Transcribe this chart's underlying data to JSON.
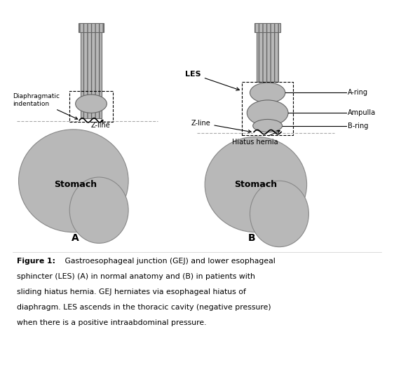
{
  "fig_width": 5.62,
  "fig_height": 5.27,
  "dpi": 100,
  "bg_color": "#ffffff",
  "border_color": "#cccccc",
  "gray": "#b8b8b8",
  "dark_gray": "#888888",
  "label_A": "A",
  "label_B": "B",
  "label_LES": "LES",
  "label_Zline": "Z-line",
  "label_diaphragmatic": "Diaphragmatic\nindentation",
  "label_hiatus_hernia": "Hiatus hernia",
  "label_Aring": "A-ring",
  "label_Ampulla": "Ampulla",
  "label_Bring": "B-ring",
  "label_stomach_A": "Stomach",
  "label_stomach_B": "Stomach",
  "caption_bold": "Figure 1:",
  "caption_rest": " Gastroesophageal junction (GEJ) and lower esophageal sphincter (LES) (A) in normal anatomy and (B) in patients with sliding hiatus hernia. GEJ herniates via esophageal hiatus of diaphragm. LES ascends in the thoracic cavity (negative pressure) when there is a positive intraabdominal pressure."
}
